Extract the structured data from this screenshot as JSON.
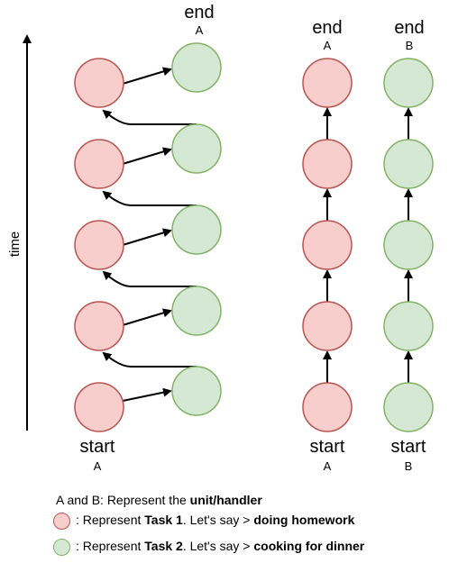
{
  "colors": {
    "task1_fill": "#f8cecc",
    "task1_stroke": "#b85450",
    "task2_fill": "#d5e8d4",
    "task2_stroke": "#82b366"
  },
  "axis": {
    "label": "time"
  },
  "left_panel": {
    "end_label": "end",
    "end_unit": "A",
    "start_label": "start",
    "start_unit": "A"
  },
  "right_panel_a": {
    "end_label": "end",
    "end_unit": "A",
    "start_label": "start",
    "start_unit": "A"
  },
  "right_panel_b": {
    "end_label": "end",
    "end_unit": "B",
    "start_label": "start",
    "start_unit": "B"
  },
  "legend": {
    "units": {
      "prefix": "A and B: Represent the ",
      "bold": "unit/handler"
    },
    "task1": {
      "prefix": ": Represent ",
      "bold_task": "Task 1",
      "middle": ". Let's say > ",
      "bold_desc": "doing homework"
    },
    "task2": {
      "prefix": ": Represent ",
      "bold_task": "Task 2",
      "middle": ". Let's say > ",
      "bold_desc": "cooking for dinner"
    }
  }
}
